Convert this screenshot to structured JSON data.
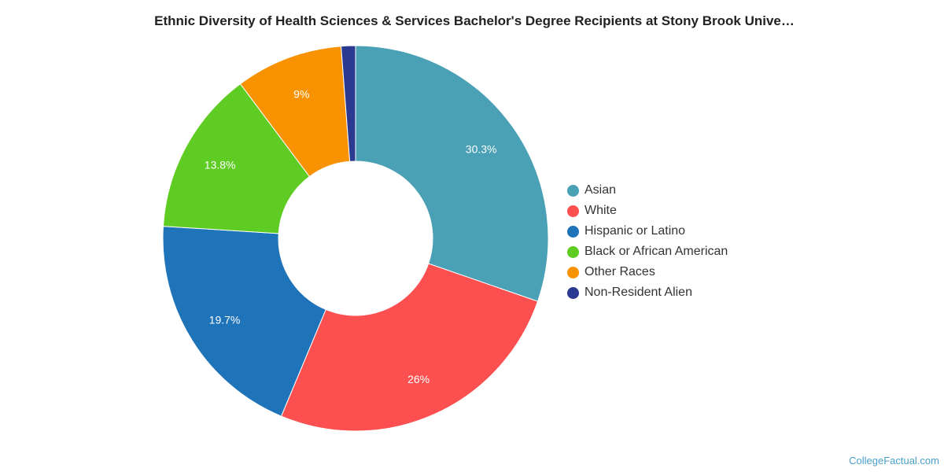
{
  "chart_data": {
    "type": "pie",
    "variant": "donut",
    "title": "Ethnic Diversity of Health Sciences & Services Bachelor's Degree Recipients at Stony Brook Unive…",
    "legend_position": "right",
    "slices": [
      {
        "name": "Asian",
        "value": 30.3,
        "label": "30.3%",
        "color": "#4aa0b5"
      },
      {
        "name": "White",
        "value": 26,
        "label": "26%",
        "color": "#fc5050"
      },
      {
        "name": "Hispanic or Latino",
        "value": 19.7,
        "label": "19.7%",
        "color": "#1f73b9"
      },
      {
        "name": "Black or African American",
        "value": 13.8,
        "label": "13.8%",
        "color": "#5fcc23"
      },
      {
        "name": "Other Races",
        "value": 9,
        "label": "9%",
        "color": "#f99200"
      },
      {
        "name": "Non-Resident Alien",
        "value": 1.2,
        "label": "",
        "color": "#2b3990"
      }
    ]
  },
  "credit": "CollegeFactual.com"
}
